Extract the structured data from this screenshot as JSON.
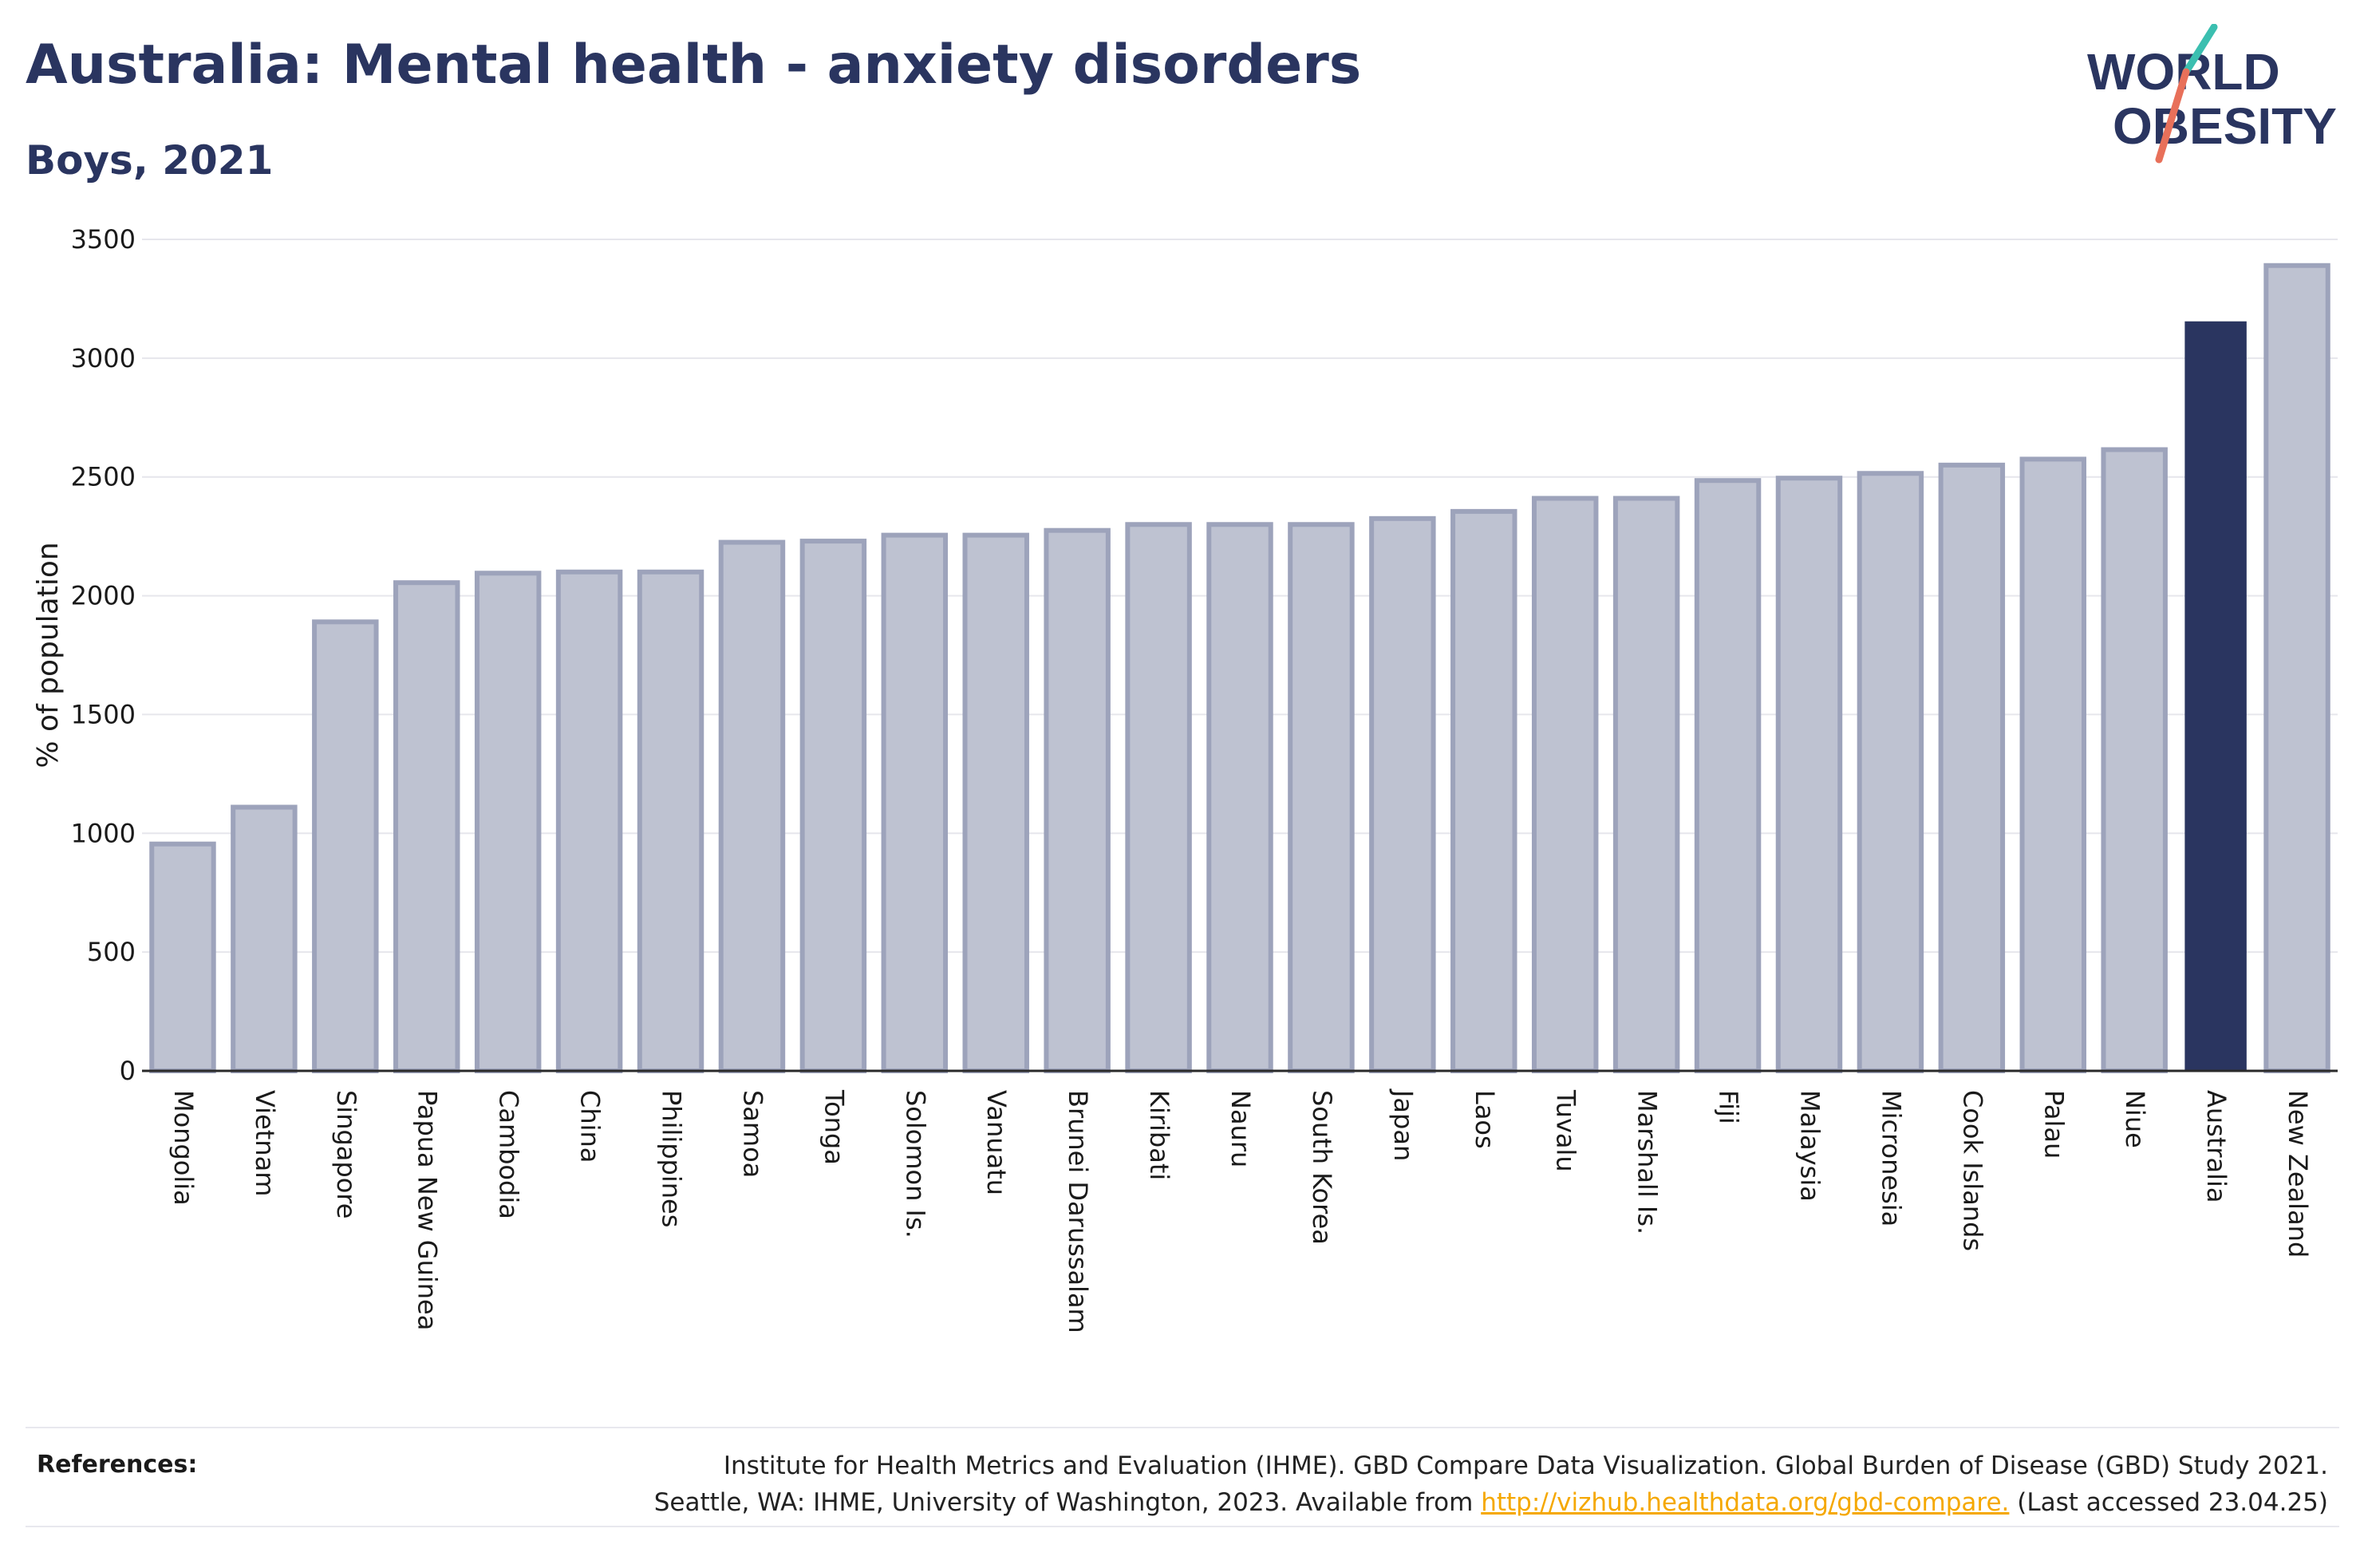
{
  "header": {
    "title": "Australia: Mental health - anxiety disorders",
    "subtitle": "Boys, 2021"
  },
  "logo": {
    "line1": "WORLD",
    "line2": "OBESITY",
    "accent_teal": "#3bbfb0",
    "accent_red": "#e8705a"
  },
  "colors": {
    "bar_default": "#bec2d1",
    "bar_default_border": "#9da3bb",
    "bar_highlight": "#2a3560",
    "text_dark": "#2a3560",
    "link": "#f5a800"
  },
  "chart_data": {
    "type": "bar",
    "title": "",
    "xlabel": "",
    "ylabel": "% of population",
    "ylim": [
      0,
      3500
    ],
    "yticks": [
      0,
      500,
      1000,
      1500,
      2000,
      2500,
      3000,
      3500
    ],
    "grid": true,
    "highlight": "Australia",
    "categories": [
      "Mongolia",
      "Vietnam",
      "Singapore",
      "Papua New Guinea",
      "Cambodia",
      "China",
      "Philippines",
      "Samoa",
      "Tonga",
      "Solomon Is.",
      "Vanuatu",
      "Brunei Darussalam",
      "Kiribati",
      "Nauru",
      "South Korea",
      "Japan",
      "Laos",
      "Tuvalu",
      "Marshall Is.",
      "Fiji",
      "Malaysia",
      "Micronesia",
      "Cook Islands",
      "Palau",
      "Niue",
      "Australia",
      "New Zealand"
    ],
    "values": [
      955,
      1110,
      1890,
      2055,
      2095,
      2100,
      2100,
      2225,
      2230,
      2255,
      2255,
      2275,
      2300,
      2300,
      2300,
      2325,
      2355,
      2410,
      2410,
      2485,
      2495,
      2515,
      2550,
      2575,
      2615,
      3155,
      3390
    ]
  },
  "references": {
    "label": "References:",
    "line1": "Institute for Health Metrics and Evaluation (IHME). GBD Compare Data Visualization. Global Burden of Disease (GBD) Study 2021.",
    "line2_prefix": "Seattle, WA: IHME, University of Washington, 2023. Available from ",
    "link_text": "http://vizhub.healthdata.org/gbd-compare.",
    "line2_suffix": " (Last accessed 23.04.25)"
  }
}
